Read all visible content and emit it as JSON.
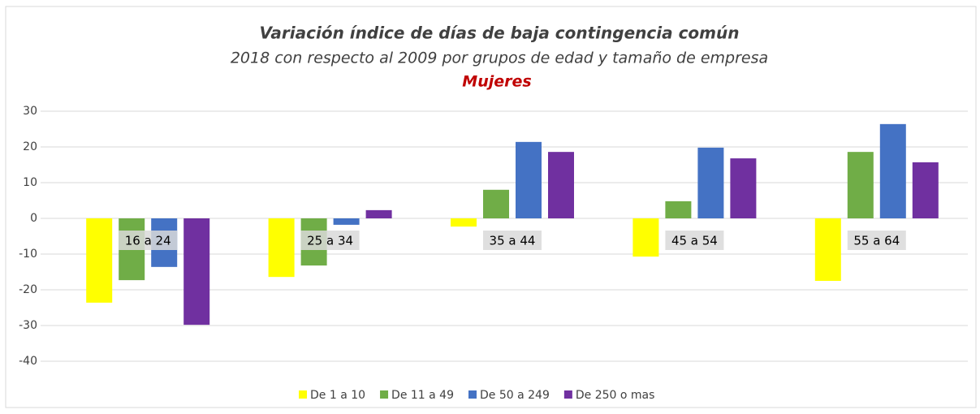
{
  "chart_data": {
    "type": "bar",
    "title": "Variación índice de días de baja contingencia común",
    "subtitle": "2018 con respecto al 2009 por grupos de edad y tamaño de empresa",
    "annotation": "Mujeres",
    "categories": [
      "16 a 24",
      "25 a 34",
      "35 a 44",
      "45 a 54",
      "55 a 64"
    ],
    "series": [
      {
        "name": "De 1 a 10",
        "color": "#ffff00",
        "values": [
          -23.6,
          -16.4,
          -2.3,
          -10.7,
          -17.5
        ]
      },
      {
        "name": "De 11 a 49",
        "color": "#70ad47",
        "values": [
          -17.3,
          -13.2,
          8,
          4.8,
          18.6
        ]
      },
      {
        "name": "De 50 a 249",
        "color": "#4472c4",
        "values": [
          -13.6,
          -1.8,
          21.4,
          19.8,
          26.4
        ]
      },
      {
        "name": "De 250 o mas",
        "color": "#7030a0",
        "values": [
          -29.8,
          2.3,
          18.6,
          16.8,
          15.7
        ]
      }
    ],
    "ylim": [
      -40,
      30
    ],
    "yticks": [
      -40,
      -30,
      -20,
      -10,
      0,
      10,
      20,
      30
    ],
    "grid": true,
    "legend": "bottom"
  }
}
